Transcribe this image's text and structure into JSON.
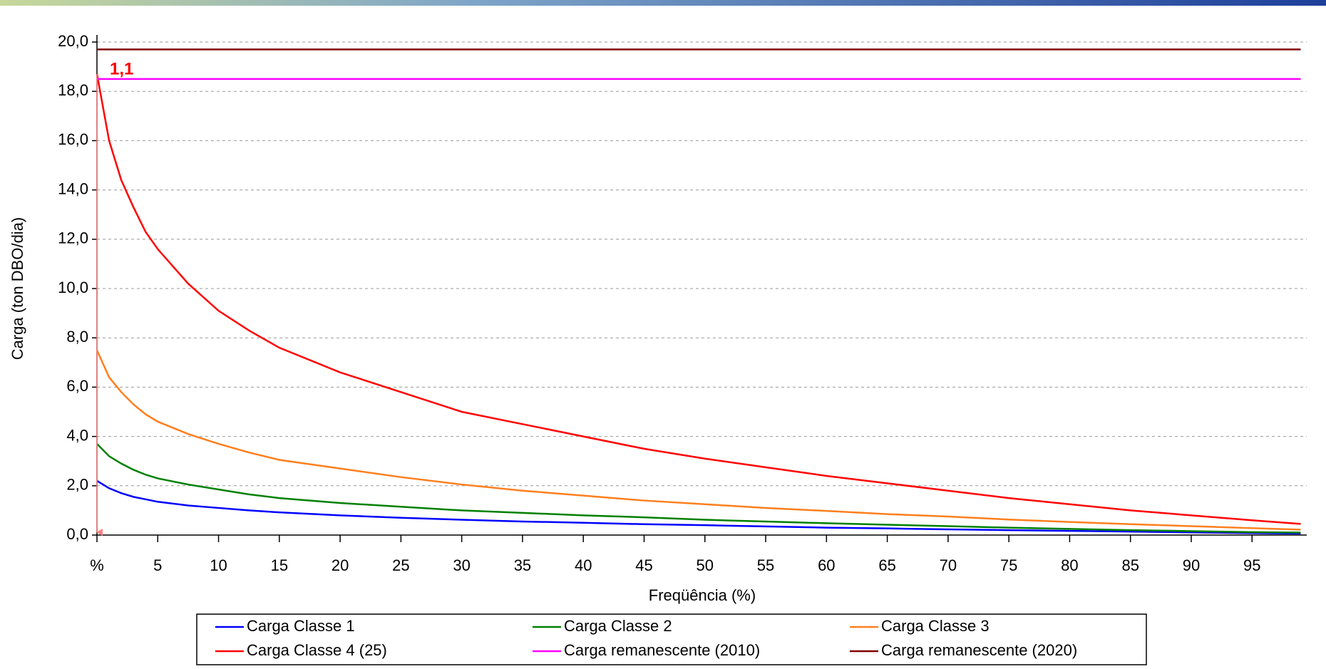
{
  "chart_data": {
    "type": "line",
    "y_label": "Carga (ton DBO/dia)",
    "x_label": "Freqüência (%)",
    "annotation": "1,1",
    "x": [
      0,
      1,
      2,
      3,
      4,
      5,
      7.5,
      10,
      12.5,
      15,
      20,
      25,
      30,
      35,
      40,
      45,
      50,
      55,
      60,
      65,
      70,
      75,
      80,
      85,
      90,
      95,
      99
    ],
    "series": [
      {
        "name": "Carga Classe 1",
        "color": "#0000ff",
        "values": [
          2.2,
          1.9,
          1.7,
          1.55,
          1.45,
          1.35,
          1.2,
          1.1,
          1.0,
          0.92,
          0.8,
          0.7,
          0.62,
          0.55,
          0.5,
          0.44,
          0.4,
          0.35,
          0.3,
          0.27,
          0.23,
          0.2,
          0.17,
          0.14,
          0.11,
          0.08,
          0.06
        ]
      },
      {
        "name": "Carga Classe 2",
        "color": "#008000",
        "values": [
          3.7,
          3.2,
          2.9,
          2.65,
          2.45,
          2.3,
          2.05,
          1.85,
          1.65,
          1.5,
          1.3,
          1.15,
          1.0,
          0.9,
          0.8,
          0.72,
          0.62,
          0.55,
          0.48,
          0.42,
          0.36,
          0.3,
          0.25,
          0.2,
          0.16,
          0.12,
          0.1
        ]
      },
      {
        "name": "Carga Classe 3",
        "color": "#ff7f1e",
        "values": [
          7.5,
          6.4,
          5.8,
          5.3,
          4.9,
          4.6,
          4.1,
          3.7,
          3.35,
          3.05,
          2.7,
          2.35,
          2.05,
          1.8,
          1.6,
          1.4,
          1.25,
          1.1,
          0.98,
          0.85,
          0.75,
          0.63,
          0.53,
          0.44,
          0.36,
          0.28,
          0.22
        ]
      },
      {
        "name": "Carga Classe 4 (25)",
        "color": "#ff0000",
        "values": [
          18.7,
          16.0,
          14.4,
          13.3,
          12.3,
          11.6,
          10.2,
          9.1,
          8.3,
          7.6,
          6.6,
          5.8,
          5.0,
          4.5,
          4.0,
          3.5,
          3.1,
          2.75,
          2.4,
          2.1,
          1.8,
          1.5,
          1.25,
          1.0,
          0.8,
          0.6,
          0.45
        ]
      },
      {
        "name": "Carga remanescente (2010)",
        "color": "#ff00ff",
        "values": [
          18.5,
          18.5,
          18.5,
          18.5,
          18.5,
          18.5,
          18.5,
          18.5,
          18.5,
          18.5,
          18.5,
          18.5,
          18.5,
          18.5,
          18.5,
          18.5,
          18.5,
          18.5,
          18.5,
          18.5,
          18.5,
          18.5,
          18.5,
          18.5,
          18.5,
          18.5,
          18.5
        ]
      },
      {
        "name": "Carga remanescente (2020)",
        "color": "#800000",
        "values": [
          19.7,
          19.7,
          19.7,
          19.7,
          19.7,
          19.7,
          19.7,
          19.7,
          19.7,
          19.7,
          19.7,
          19.7,
          19.7,
          19.7,
          19.7,
          19.7,
          19.7,
          19.7,
          19.7,
          19.7,
          19.7,
          19.7,
          19.7,
          19.7,
          19.7,
          19.7,
          19.7
        ]
      }
    ],
    "xlim": [
      0,
      99.5
    ],
    "xticks": [
      {
        "value": 0,
        "label": "%"
      },
      5,
      10,
      15,
      20,
      25,
      30,
      35,
      40,
      45,
      50,
      55,
      60,
      65,
      70,
      75,
      80,
      85,
      90,
      95
    ],
    "ylim": [
      0,
      20
    ],
    "yticks": [
      {
        "value": 0,
        "label": "0,0"
      },
      {
        "value": 2,
        "label": "2,0"
      },
      {
        "value": 4,
        "label": "4,0"
      },
      {
        "value": 6,
        "label": "6,0"
      },
      {
        "value": 8,
        "label": "8,0"
      },
      {
        "value": 10,
        "label": "10,0"
      },
      {
        "value": 12,
        "label": "12,0"
      },
      {
        "value": 14,
        "label": "14,0"
      },
      {
        "value": 16,
        "label": "16,0"
      },
      {
        "value": 18,
        "label": "18,0"
      },
      {
        "value": 20,
        "label": "20,0"
      }
    ],
    "grid": true
  }
}
